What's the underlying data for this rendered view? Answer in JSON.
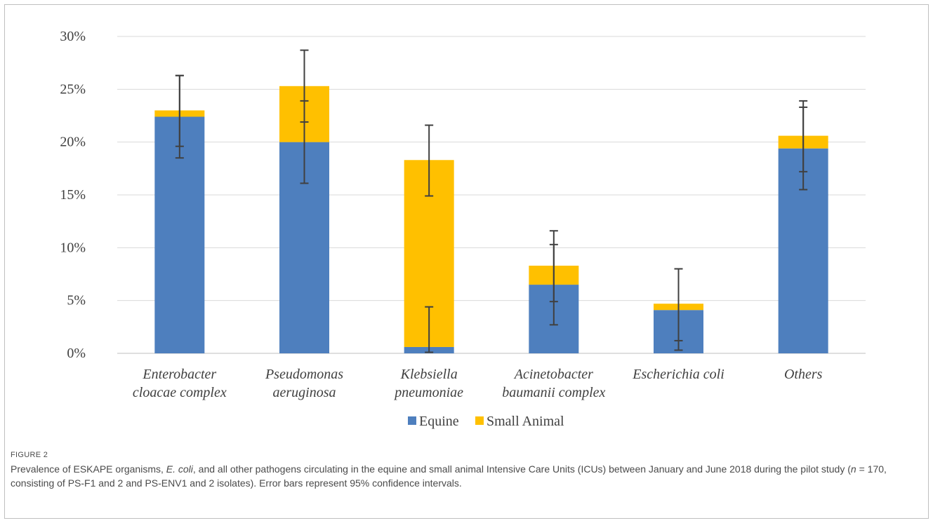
{
  "figure": {
    "label": "FIGURE 2",
    "caption": {
      "part1": "Prevalence of ESKAPE organisms, ",
      "ecoli": "E. coli",
      "part2": ", and all other pathogens circulating in the equine and small animal Intensive Care Units (ICUs) between January and June 2018 during the pilot study (",
      "n": "n",
      "part3": " = 170, consisting of PS-F1 and 2 and PS-ENV1 and 2 isolates). Error bars represent 95% confidence intervals."
    }
  },
  "colors": {
    "equine": "#4e7fbe",
    "small_animal": "#ffc000",
    "grid": "#d9d9d9",
    "error_bar": "#404040",
    "tick_text": "#404040"
  },
  "chart_data": {
    "type": "bar",
    "stacked": true,
    "categories": [
      [
        "Enterobacter",
        "cloacae complex"
      ],
      [
        "Pseudomonas",
        "aeruginosa"
      ],
      [
        "Klebsiella",
        "pneumoniae"
      ],
      [
        "Acinetobacter",
        "baumanii complex"
      ],
      [
        "Escherichia coli"
      ],
      [
        "Others"
      ]
    ],
    "series": [
      {
        "name": "Equine",
        "values": [
          22.4,
          20.0,
          0.6,
          6.5,
          4.1,
          19.4
        ]
      },
      {
        "name": "Small Animal",
        "values": [
          0.6,
          5.3,
          17.7,
          1.8,
          0.6,
          1.2
        ]
      }
    ],
    "error_bars": [
      {
        "equine": [
          18.5,
          26.3
        ],
        "total": [
          19.6,
          26.3
        ]
      },
      {
        "equine": [
          16.1,
          23.9
        ],
        "total": [
          21.9,
          28.7
        ]
      },
      {
        "equine": [
          0.1,
          4.4
        ],
        "total": [
          14.9,
          21.6
        ]
      },
      {
        "equine": [
          2.7,
          10.3
        ],
        "total": [
          4.9,
          11.6
        ]
      },
      {
        "equine": [
          0.3,
          8.0
        ],
        "total": [
          1.2,
          8.0
        ]
      },
      {
        "equine": [
          15.5,
          23.3
        ],
        "total": [
          17.2,
          23.9
        ]
      }
    ],
    "y_ticks": [
      "0%",
      "5%",
      "10%",
      "15%",
      "20%",
      "25%",
      "30%"
    ],
    "ylim": [
      0,
      30
    ],
    "xlabel": "",
    "ylabel": "",
    "title": "",
    "grid": true,
    "legend_position": "bottom"
  }
}
